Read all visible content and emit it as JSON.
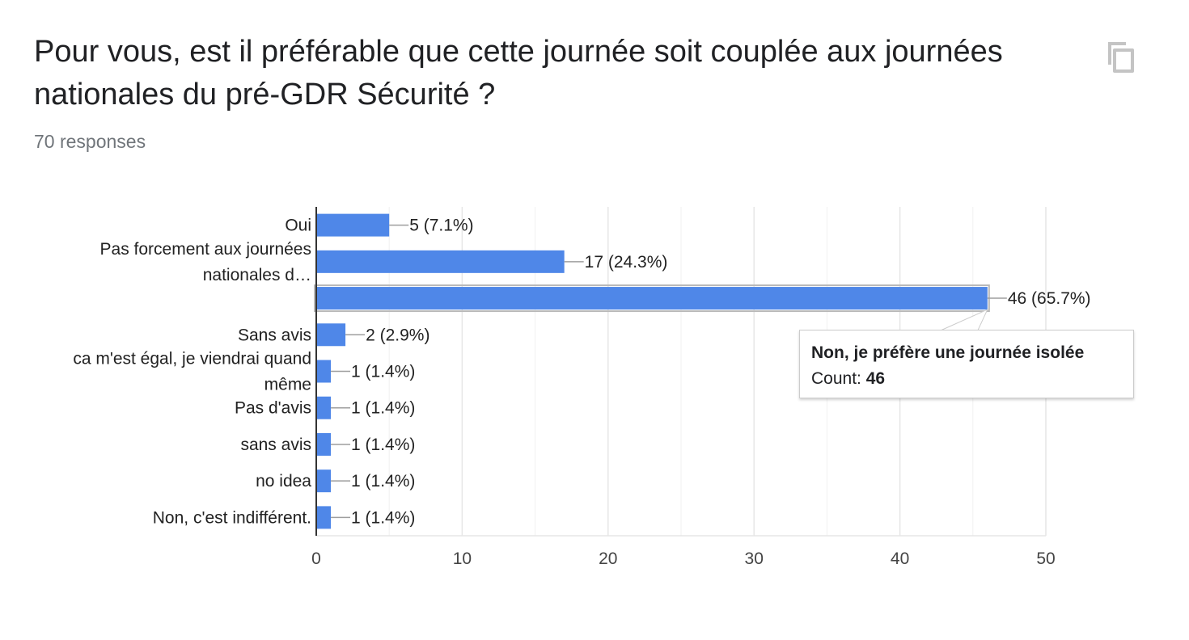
{
  "question": {
    "title": "Pour vous, est il préférable que cette journée soit couplée aux journées nationales du pré-GDR Sécurité ?",
    "responses": "70 responses"
  },
  "icons": {
    "copy": "copy-icon"
  },
  "colors": {
    "bar": "#4f87e8",
    "bar_highlight": "#4f87e8",
    "grid": "#e6e6e6",
    "axis": "#333333",
    "text": "#202124",
    "muted": "#70757a"
  },
  "tooltip": {
    "title": "Non, je préfère une journée isolée",
    "count_label": "Count: ",
    "count_value": "46"
  },
  "chart_data": {
    "type": "bar",
    "orientation": "horizontal",
    "categories": [
      [
        "Oui"
      ],
      [
        "Pas forcement aux journées",
        "nationales d…"
      ],
      [],
      [
        "Sans avis"
      ],
      [
        "ca m'est égal, je viendrai quand",
        "même"
      ],
      [
        "Pas d'avis"
      ],
      [
        "sans avis"
      ],
      [
        "no idea"
      ],
      [
        "Non, c'est indifférent."
      ]
    ],
    "values": [
      5,
      17,
      46,
      2,
      1,
      1,
      1,
      1,
      1
    ],
    "data_labels": [
      "5 (7.1%)",
      "17 (24.3%)",
      "46 (65.7%)",
      "2 (2.9%)",
      "1 (1.4%)",
      "1 (1.4%)",
      "1 (1.4%)",
      "1 (1.4%)",
      "1 (1.4%)"
    ],
    "highlighted_index": 2,
    "xlim": [
      0,
      50
    ],
    "x_ticks": [
      0,
      10,
      20,
      30,
      40,
      50
    ],
    "minor_gridlines": true,
    "legend": "none"
  }
}
